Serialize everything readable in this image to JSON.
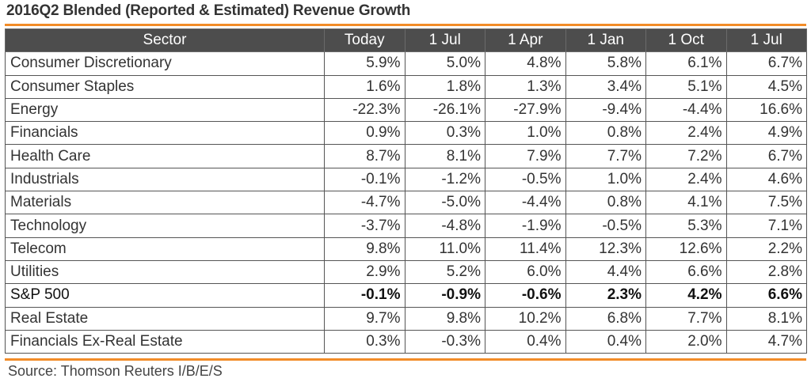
{
  "chart_data": {
    "type": "table",
    "title": "2016Q2 Blended (Reported & Estimated) Revenue Growth",
    "columns": [
      "Sector",
      "Today",
      "1 Jul",
      "1 Apr",
      "1 Jan",
      "1 Oct",
      "1 Jul"
    ],
    "rows": [
      {
        "sector": "Consumer Discretionary",
        "values": [
          "5.9%",
          "5.0%",
          "4.8%",
          "5.8%",
          "6.1%",
          "6.7%"
        ]
      },
      {
        "sector": "Consumer Staples",
        "values": [
          "1.6%",
          "1.8%",
          "1.3%",
          "3.4%",
          "5.1%",
          "4.5%"
        ]
      },
      {
        "sector": "Energy",
        "values": [
          "-22.3%",
          "-26.1%",
          "-27.9%",
          "-9.4%",
          "-4.4%",
          "16.6%"
        ]
      },
      {
        "sector": "Financials",
        "values": [
          "0.9%",
          "0.3%",
          "1.0%",
          "0.8%",
          "2.4%",
          "4.9%"
        ]
      },
      {
        "sector": "Health Care",
        "values": [
          "8.7%",
          "8.1%",
          "7.9%",
          "7.7%",
          "7.2%",
          "6.7%"
        ]
      },
      {
        "sector": "Industrials",
        "values": [
          "-0.1%",
          "-1.2%",
          "-0.5%",
          "1.0%",
          "2.4%",
          "4.6%"
        ]
      },
      {
        "sector": "Materials",
        "values": [
          "-4.7%",
          "-5.0%",
          "-4.4%",
          "0.8%",
          "4.1%",
          "7.5%"
        ]
      },
      {
        "sector": "Technology",
        "values": [
          "-3.7%",
          "-4.8%",
          "-1.9%",
          "-0.5%",
          "5.3%",
          "7.1%"
        ]
      },
      {
        "sector": "Telecom",
        "values": [
          "9.8%",
          "11.0%",
          "11.4%",
          "12.3%",
          "12.6%",
          "2.2%"
        ]
      },
      {
        "sector": "Utilities",
        "values": [
          "2.9%",
          "5.2%",
          "6.0%",
          "4.4%",
          "6.6%",
          "2.8%"
        ]
      },
      {
        "sector": "S&P 500",
        "values": [
          "-0.1%",
          "-0.9%",
          "-0.6%",
          "2.3%",
          "4.2%",
          "6.6%"
        ],
        "emphasis": true
      },
      {
        "sector": "Real Estate",
        "values": [
          "9.7%",
          "9.8%",
          "10.2%",
          "6.8%",
          "7.7%",
          "8.1%"
        ]
      },
      {
        "sector": "Financials Ex-Real Estate",
        "values": [
          "0.3%",
          "-0.3%",
          "0.4%",
          "0.4%",
          "2.0%",
          "4.7%"
        ]
      }
    ],
    "source": "Source: Thomson Reuters I/B/E/S"
  },
  "colors": {
    "accent_rule": "#f28c28",
    "header_background": "#4d4d4d",
    "header_text": "#ffffff",
    "grid_line": "#555555"
  }
}
